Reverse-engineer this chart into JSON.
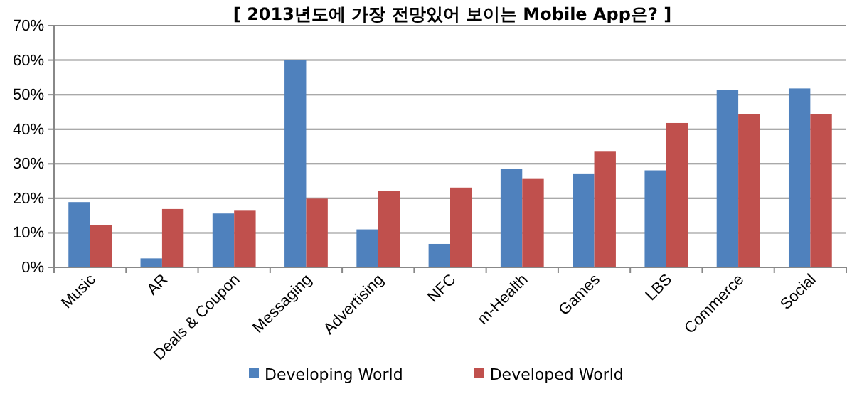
{
  "chart_data": {
    "type": "bar",
    "title": "[ 2013년도에 가장 전망있어 보이는 Mobile App은? ]",
    "categories": [
      "Music",
      "AR",
      "Deals & Coupon",
      "Messaging",
      "Advertising",
      "NFC",
      "m-Health",
      "Games",
      "LBS",
      "Commerce",
      "Social"
    ],
    "series": [
      {
        "name": "Developing World",
        "color": "#4f81bd",
        "values": [
          18.9,
          2.6,
          15.6,
          60,
          11,
          6.8,
          28.5,
          27.2,
          28.1,
          51.4,
          51.8
        ]
      },
      {
        "name": "Developed World",
        "color": "#c0504d",
        "values": [
          12.2,
          16.9,
          16.4,
          19.9,
          22.2,
          23.1,
          25.6,
          33.5,
          41.8,
          44.3,
          44.3
        ]
      }
    ],
    "ylim": [
      0,
      70
    ],
    "yticks": [
      {
        "value": 0,
        "label": "0%"
      },
      {
        "value": 10,
        "label": "10%"
      },
      {
        "value": 20,
        "label": "20%"
      },
      {
        "value": 30,
        "label": "30%"
      },
      {
        "value": 40,
        "label": "40%"
      },
      {
        "value": 50,
        "label": "50%"
      },
      {
        "value": 60,
        "label": "60%"
      },
      {
        "value": 70,
        "label": "70%"
      }
    ],
    "grid": "y",
    "legend": "bottom"
  }
}
